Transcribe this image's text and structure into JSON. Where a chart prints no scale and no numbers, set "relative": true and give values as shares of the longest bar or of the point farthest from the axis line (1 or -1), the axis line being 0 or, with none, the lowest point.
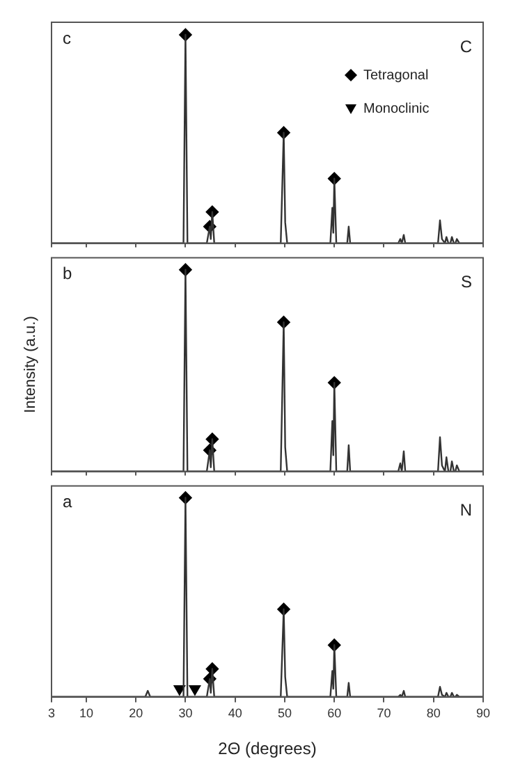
{
  "chart_data": [
    {
      "type": "line",
      "relative": true,
      "annotations": [
        "c",
        "C"
      ],
      "legend": "top right",
      "tick_labels": false,
      "grid": false,
      "xlim": [
        3,
        90
      ],
      "xticks": [
        3,
        10,
        20,
        30,
        40,
        50,
        60,
        70,
        80,
        90
      ],
      "x": [
        3,
        21.9,
        22.4,
        22.9,
        26,
        29.6,
        30.0,
        30.4,
        34.3,
        34.9,
        35.1,
        35.4,
        35.8,
        49.2,
        49.8,
        50.1,
        50.5,
        59.2,
        59.6,
        59.8,
        60.0,
        60.4,
        62.6,
        62.9,
        63.2,
        72.9,
        73.3,
        73.6,
        74.0,
        74.3,
        80.9,
        81.3,
        81.7,
        82.3,
        82.6,
        83.0,
        83.4,
        83.7,
        84.1,
        84.4,
        84.7,
        85.2,
        90
      ],
      "series": [
        {
          "type": "line",
          "marker": "none",
          "color": "#333333",
          "values": [
            0,
            0,
            0,
            0,
            0,
            0,
            1.0,
            0,
            0,
            0.08,
            0.02,
            0.15,
            0,
            0,
            0.53,
            0.1,
            0,
            0,
            0.17,
            0.05,
            0.31,
            0,
            0,
            0.08,
            0,
            0,
            0.02,
            0,
            0.04,
            0,
            0,
            0.11,
            0.02,
            0,
            0.03,
            0,
            0,
            0.03,
            0,
            0,
            0.02,
            0,
            0
          ]
        },
        {
          "type": "scatter",
          "name": "Tetragonal",
          "marker": "diamond",
          "color": "#000000",
          "x": [
            30.0,
            34.9,
            35.4,
            49.8,
            60.0
          ],
          "values": [
            1.0,
            0.08,
            0.15,
            0.53,
            0.31
          ]
        },
        {
          "type": "scatter",
          "name": "Monoclinic",
          "marker": "triangle",
          "color": "#000000",
          "values": [
            null,
            null,
            null,
            null,
            null,
            null,
            null,
            null,
            null,
            null,
            null,
            null,
            null,
            null,
            null,
            null,
            null,
            null,
            null,
            null,
            null,
            null,
            null,
            null,
            null,
            null,
            null,
            null,
            null,
            null,
            null,
            null,
            null,
            null,
            null,
            null,
            null,
            null,
            null,
            null,
            null,
            null,
            null
          ]
        }
      ]
    },
    {
      "type": "line",
      "relative": true,
      "annotations": [
        "b",
        "S"
      ],
      "ylabel": "Intensity (a.u.)",
      "tick_labels": false,
      "grid": false,
      "xlim": [
        3,
        90
      ],
      "xticks": [
        3,
        10,
        20,
        30,
        40,
        50,
        60,
        70,
        80,
        90
      ],
      "x": [
        3,
        21.9,
        22.4,
        22.9,
        26,
        29.6,
        30.0,
        30.4,
        34.3,
        34.9,
        35.1,
        35.4,
        35.8,
        49.2,
        49.8,
        50.1,
        50.5,
        59.2,
        59.6,
        59.8,
        60.0,
        60.4,
        62.6,
        62.9,
        63.2,
        72.9,
        73.3,
        73.6,
        74.0,
        74.3,
        80.9,
        81.3,
        81.7,
        82.3,
        82.6,
        83.0,
        83.4,
        83.7,
        84.1,
        84.4,
        84.7,
        85.2,
        90
      ],
      "series": [
        {
          "type": "line",
          "marker": "none",
          "color": "#333333",
          "values": [
            0,
            0,
            0,
            0,
            0,
            0,
            1.0,
            0,
            0,
            0.105,
            0.02,
            0.16,
            0,
            0,
            0.74,
            0.12,
            0,
            0,
            0.25,
            0.08,
            0.44,
            0,
            0,
            0.13,
            0,
            0,
            0.04,
            0,
            0.1,
            0,
            0,
            0.17,
            0.03,
            0,
            0.07,
            0,
            0,
            0.05,
            0,
            0,
            0.03,
            0,
            0
          ]
        },
        {
          "type": "scatter",
          "marker": "diamond",
          "color": "#000000",
          "x": [
            30.0,
            34.9,
            35.4,
            49.8,
            60.0
          ],
          "values": [
            1.0,
            0.105,
            0.16,
            0.74,
            0.44
          ]
        }
      ]
    },
    {
      "type": "line",
      "relative": true,
      "annotations": [
        "a",
        "N"
      ],
      "xlabel": "2Θ (degrees)",
      "tick_labels": "x",
      "grid": false,
      "xlim": [
        3,
        90
      ],
      "xticks": [
        3,
        10,
        20,
        30,
        40,
        50,
        60,
        70,
        80,
        90
      ],
      "x": [
        3,
        21.9,
        22.4,
        22.9,
        26,
        29.6,
        30.0,
        30.4,
        34.3,
        34.9,
        35.1,
        35.4,
        35.8,
        49.2,
        49.8,
        50.1,
        50.5,
        59.2,
        59.6,
        59.8,
        60.0,
        60.4,
        62.6,
        62.9,
        63.2,
        72.9,
        73.3,
        73.6,
        74.0,
        74.3,
        80.9,
        81.3,
        81.7,
        82.3,
        82.6,
        83.0,
        83.4,
        83.7,
        84.1,
        84.4,
        84.7,
        85.2,
        90
      ],
      "series": [
        {
          "type": "line",
          "marker": "none",
          "color": "#333333",
          "values": [
            0,
            0,
            0.03,
            0,
            0,
            0,
            1.0,
            0,
            0,
            0.09,
            0.02,
            0.14,
            0,
            0,
            0.44,
            0.1,
            0,
            0,
            0.13,
            0.04,
            0.26,
            0,
            0,
            0.07,
            0,
            0,
            0.01,
            0,
            0.03,
            0,
            0,
            0.05,
            0.01,
            0,
            0.02,
            0,
            0,
            0.02,
            0,
            0,
            0.01,
            0,
            0
          ]
        },
        {
          "type": "scatter",
          "marker": "diamond",
          "color": "#000000",
          "x": [
            30.0,
            34.9,
            35.4,
            49.8,
            60.0
          ],
          "values": [
            1.0,
            0.09,
            0.14,
            0.44,
            0.26
          ]
        },
        {
          "type": "scatter",
          "marker": "triangle",
          "color": "#000000",
          "x": [
            28.8,
            31.9
          ],
          "values": [
            0.04,
            0.04
          ]
        }
      ]
    }
  ]
}
